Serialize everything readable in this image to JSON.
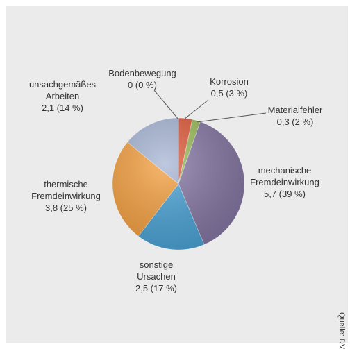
{
  "chart_data": {
    "type": "pie",
    "categories": [
      "Bodenbewegung",
      "Korrosion",
      "Materialfehler",
      "mechanische Fremdeinwirkung",
      "sonstige Ursachen",
      "thermische Fremdeinwirkung",
      "unsachgemäßes Arbeiten"
    ],
    "values": [
      0,
      0.5,
      0.3,
      5.7,
      2.5,
      3.8,
      2.1
    ],
    "value_labels": [
      "0 (0 %)",
      "0,5 (3 %)",
      "0,3 (2 %)",
      "5,7 (39 %)",
      "2,5 (17 %)",
      "3,8 (25 %)",
      "2,1 (14 %)"
    ],
    "colors": [
      "#4f81bd",
      "#e05a3a",
      "#9bbb59",
      "#8576a3",
      "#4aa3d6",
      "#f5a040",
      "#a8b7d6"
    ],
    "source": "Quelle: DVGW"
  }
}
